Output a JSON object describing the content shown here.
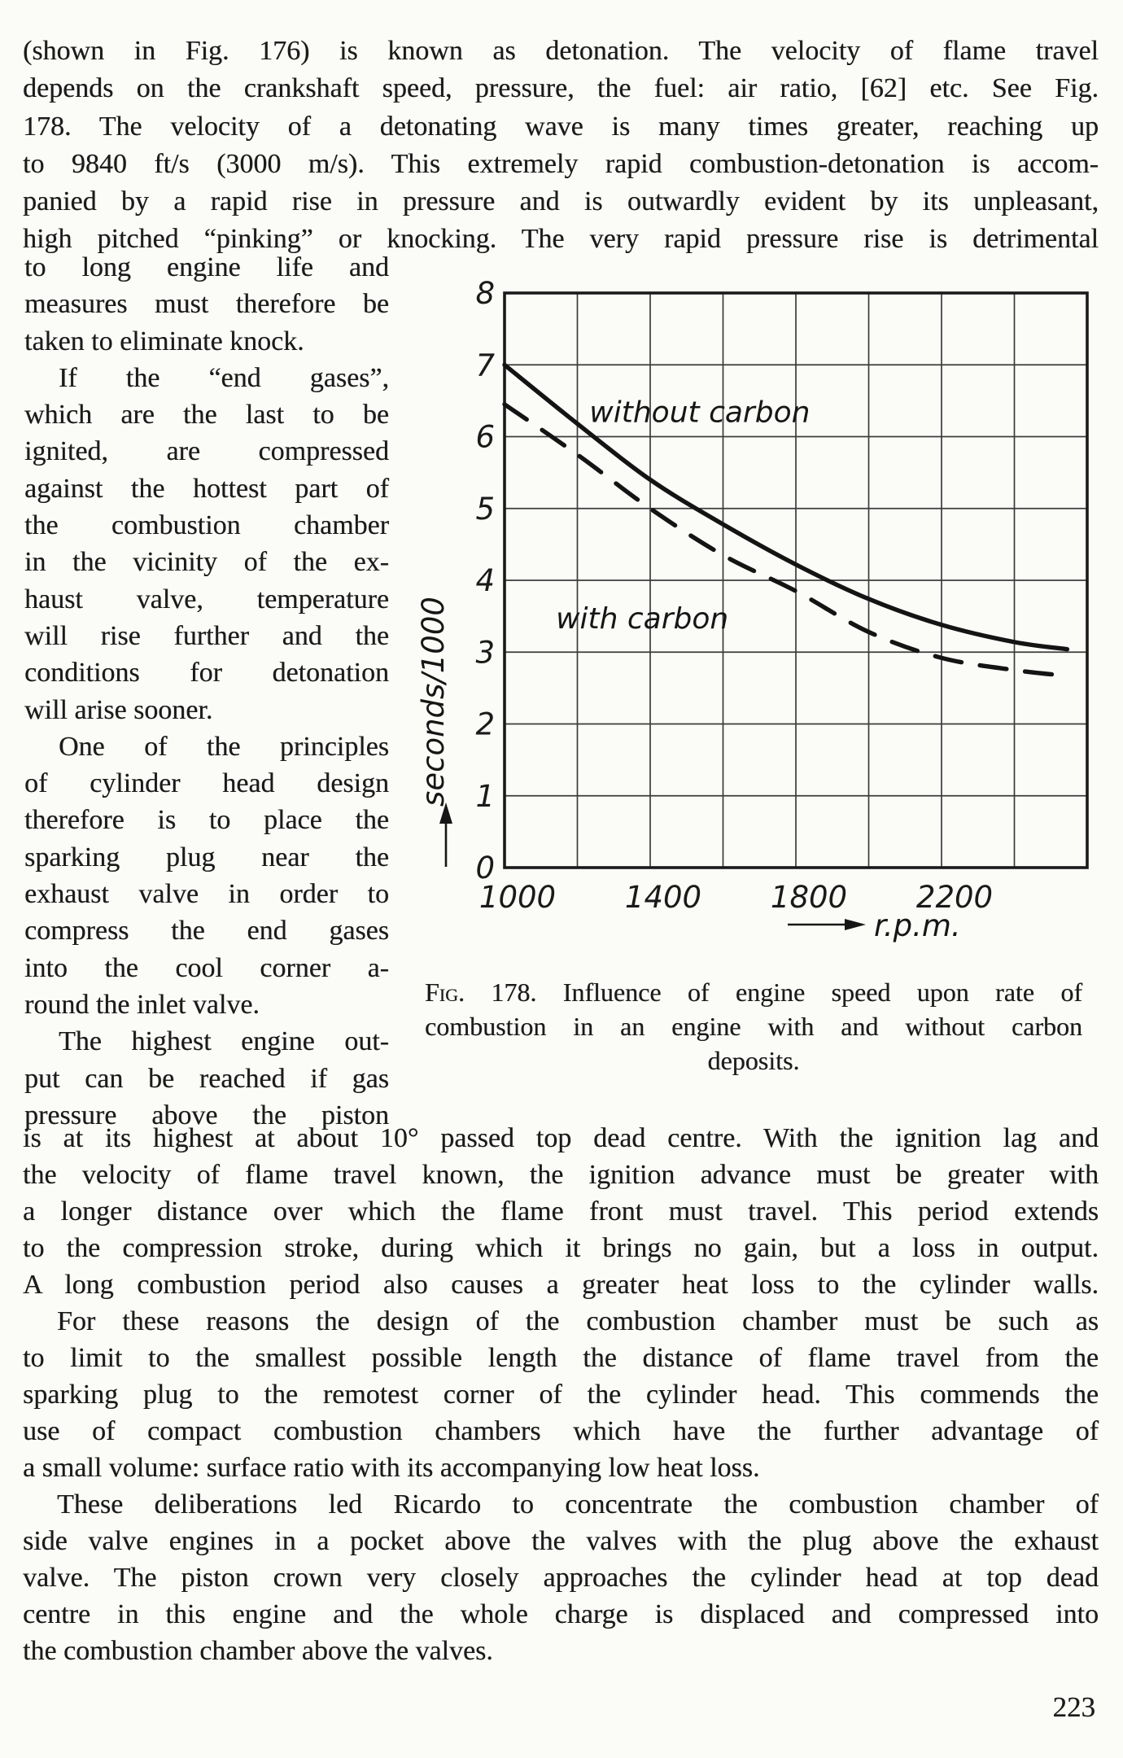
{
  "page": {
    "number": "223"
  },
  "top_paragraph": {
    "lines": [
      {
        "text": "(shown in Fig. 176) is known as detonation. The velocity of flame travel"
      },
      {
        "text": "depends on the crankshaft speed, pressure, the fuel: air ratio, [62] etc. See Fig."
      },
      {
        "text": "178. The velocity of a detonating wave is many times greater, reaching up"
      },
      {
        "text": "to 9840 ft/s (3000 m/s). This extremely rapid combustion-detonation is accom-"
      },
      {
        "text": "panied by a rapid rise in pressure and is outwardly evident by its unpleasant,"
      },
      {
        "text": "high pitched “pinking” or knocking. The very rapid pressure rise is detrimental"
      }
    ]
  },
  "left_column": {
    "lines": [
      {
        "text": "to long engine life and"
      },
      {
        "text": "measures must therefore be"
      },
      {
        "text": "taken to eliminate knock.",
        "end": true
      },
      {
        "text": "If the “end gases”,",
        "indent": true
      },
      {
        "text": "which are the last to be"
      },
      {
        "text": "ignited, are compressed"
      },
      {
        "text": "against the hottest part of"
      },
      {
        "text": "the combustion chamber"
      },
      {
        "text": "in the vicinity of the ex-"
      },
      {
        "text": "haust valve, temperature"
      },
      {
        "text": "will rise further and the"
      },
      {
        "text": "conditions for detonation"
      },
      {
        "text": "will arise sooner.",
        "end": true
      },
      {
        "text": "One of the principles",
        "indent": true
      },
      {
        "text": "of cylinder head design"
      },
      {
        "text": "therefore is to place the"
      },
      {
        "text": "sparking plug near the"
      },
      {
        "text": "exhaust valve in order to"
      },
      {
        "text": "compress the end gases"
      },
      {
        "text": "into the cool corner a-"
      },
      {
        "text": "round the inlet valve.",
        "end": true
      },
      {
        "text": "The highest engine out-",
        "indent": true
      },
      {
        "text": "put can be reached if gas"
      },
      {
        "text": "pressure above the piston"
      }
    ]
  },
  "figure": {
    "fig_label": "Fig.",
    "caption_line1_rest": " 178. Influence of engine speed upon rate of",
    "caption_line2": "combustion in an engine with and without carbon",
    "caption_line3": "deposits."
  },
  "bottom_paragraphs": {
    "lines": [
      {
        "text": "is at its highest at about 10° passed top dead centre. With the ignition lag and"
      },
      {
        "text": "the velocity of flame travel known, the ignition advance must be greater with"
      },
      {
        "text": "a longer distance over which the flame front must travel. This period extends"
      },
      {
        "text": "to the compression stroke, during which it brings no gain, but a loss in output."
      },
      {
        "text": "A long combustion period also causes a greater heat loss to the cylinder walls."
      },
      {
        "text": "For these reasons the design of the combustion chamber must be such as",
        "indent": true
      },
      {
        "text": "to limit to the smallest possible length the distance of flame travel from the"
      },
      {
        "text": "sparking plug to the remotest corner of the cylinder head. This commends the"
      },
      {
        "text": "use of compact combustion chambers which have the further advantage of"
      },
      {
        "text": "a small volume: surface ratio with its accompanying low heat loss.",
        "end": true
      },
      {
        "text": "These deliberations led Ricardo to concentrate the combustion chamber of",
        "indent": true
      },
      {
        "text": "side valve engines in a pocket above the valves with the plug above the exhaust"
      },
      {
        "text": "valve. The piston crown very closely approaches the cylinder head at top dead"
      },
      {
        "text": "centre in this engine and the whole charge is displaced and compressed into"
      },
      {
        "text": "the combustion chamber above the valves.",
        "end": true
      }
    ]
  },
  "chart_data": {
    "type": "line",
    "title": "",
    "xlabel": "r.p.m.",
    "ylabel": "seconds/1000",
    "xlim": [
      1000,
      2600
    ],
    "ylim": [
      0,
      8
    ],
    "x_grid_step": 200,
    "y_grid_step": 1,
    "grid": true,
    "legend_position": "inline-labels",
    "x_tick_labels": [
      1000,
      1400,
      1800,
      2200
    ],
    "y_tick_labels": [
      0,
      1,
      2,
      3,
      4,
      5,
      6,
      7,
      8
    ],
    "series": [
      {
        "name": "without carbon",
        "line_style": "solid",
        "x": [
          1000,
          1200,
          1400,
          1600,
          1800,
          2000,
          2200,
          2400,
          2545
        ],
        "y": [
          7.0,
          6.18,
          5.4,
          4.78,
          4.22,
          3.74,
          3.38,
          3.14,
          3.04
        ],
        "label_center": {
          "x": 1536,
          "y": 6.35
        }
      },
      {
        "name": "with carbon",
        "line_style": "dashed",
        "x": [
          1000,
          1200,
          1400,
          1600,
          1800,
          2000,
          2200,
          2400,
          2545
        ],
        "y": [
          6.45,
          5.75,
          5.0,
          4.35,
          3.85,
          3.28,
          2.92,
          2.75,
          2.67
        ],
        "label_center": {
          "x": 1378,
          "y": 3.48
        }
      }
    ]
  }
}
